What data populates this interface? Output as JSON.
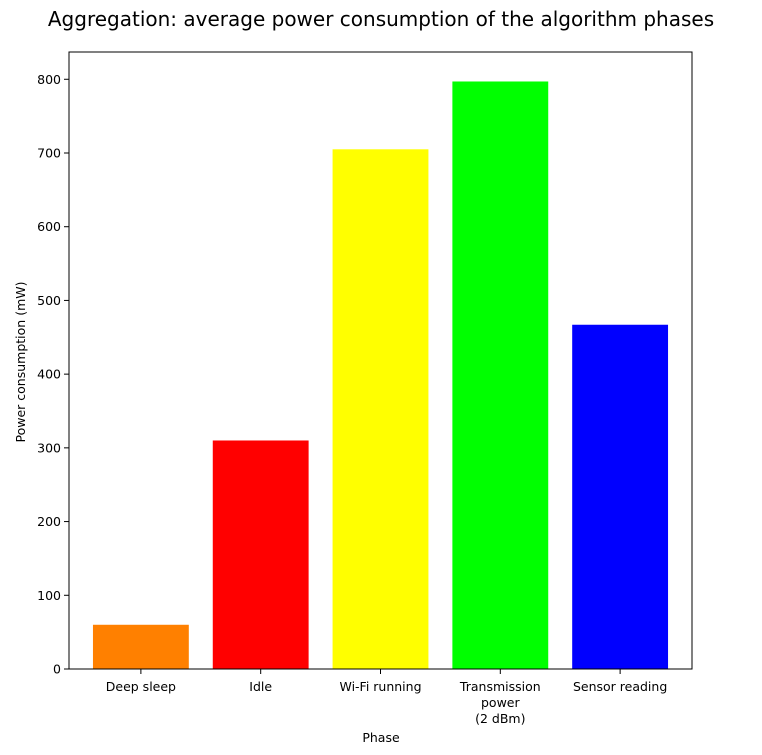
{
  "chart_data": {
    "type": "bar",
    "title": "Aggregation: average power consumption of the algorithm phases",
    "xlabel": "Phase",
    "ylabel": "Power consumption (mW)",
    "categories": [
      [
        "Deep sleep"
      ],
      [
        "Idle"
      ],
      [
        "Wi-Fi running"
      ],
      [
        "Transmission",
        "power",
        "(2 dBm)"
      ],
      [
        "Sensor reading"
      ]
    ],
    "values": [
      60,
      310,
      705,
      797,
      467
    ],
    "colors": [
      "#ff8000",
      "#ff0000",
      "#ffff00",
      "#00ff00",
      "#0000ff"
    ],
    "ylim": [
      0,
      837
    ],
    "yticks": [
      0,
      100,
      200,
      300,
      400,
      500,
      600,
      700,
      800
    ],
    "grid": false
  }
}
